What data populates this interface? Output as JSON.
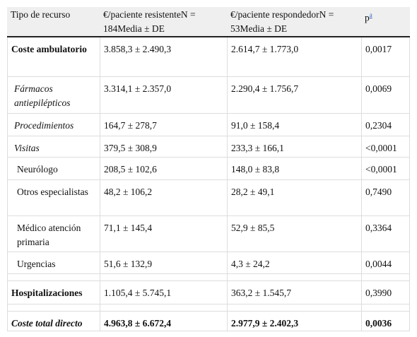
{
  "table": {
    "header": [
      "Tipo de recurso",
      "€/paciente resistenteN = 184Media ± DE",
      "€/paciente respondedorN = 53Media ± DE",
      "p"
    ],
    "footnote_mark": "a",
    "rows": [
      [
        "Coste ambulatorio",
        "3.858,3 ± 2.490,3",
        "2.614,7 ± 1.773,0",
        "0,0017"
      ],
      [
        "Fármacos antiepilépticos",
        "3.314,1 ± 2.357,0",
        "2.290,4 ± 1.756,7",
        "0,0069"
      ],
      [
        "Procedimientos",
        "164,7 ± 278,7",
        "91,0 ± 158,4",
        "0,2304"
      ],
      [
        "Visitas",
        "379,5 ± 308,9",
        "233,3 ± 166,1",
        "<0,0001"
      ],
      [
        "Neurólogo",
        "208,5 ± 102,6",
        "148,0 ± 83,8",
        "<0,0001"
      ],
      [
        "Otros especialistas",
        "48,2 ± 106,2",
        "28,2 ± 49,1",
        "0,7490"
      ],
      [
        "Médico atención primaria",
        "71,1 ± 145,4",
        "52,9 ± 85,5",
        "0,3364"
      ],
      [
        "Urgencias",
        "51,6 ± 132,9",
        "4,3 ± 24,2",
        "0,0044"
      ],
      [
        "Hospitalizaciones",
        "1.105,4 ± 5.745,1",
        "363,2 ± 1.545,7",
        "0,3990"
      ],
      [
        "Coste total directo",
        "4.963,8 ± 6.672,4",
        "2.977,9 ± 2.402,3",
        "0,0036"
      ]
    ]
  }
}
